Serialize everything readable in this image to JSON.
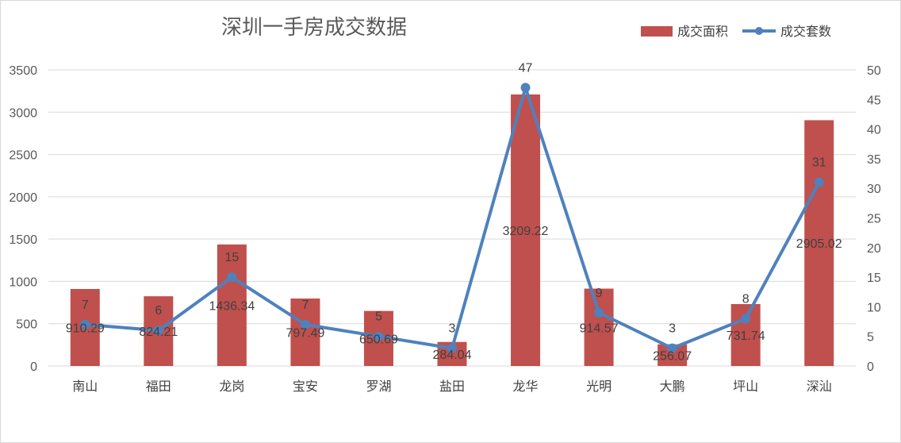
{
  "chart_data": {
    "type": "bar",
    "title": "深圳一手房成交数据",
    "categories": [
      "南山",
      "福田",
      "龙岗",
      "宝安",
      "罗湖",
      "盐田",
      "龙华",
      "光明",
      "大鹏",
      "坪山",
      "深汕"
    ],
    "series": [
      {
        "name": "成交面积",
        "type": "bar",
        "axis": "left",
        "color": "#c0504d",
        "values": [
          910.29,
          824.21,
          1436.34,
          797.49,
          650.69,
          284.04,
          3209.22,
          914.57,
          256.07,
          731.74,
          2905.02
        ],
        "labels": [
          "910.29",
          "824.21",
          "1436.34",
          "797.49",
          "650.69",
          "284.04",
          "3209.22",
          "914.57",
          "256.07",
          "731.74",
          "2905.02"
        ]
      },
      {
        "name": "成交套数",
        "type": "line",
        "axis": "right",
        "color": "#4f81bd",
        "values": [
          7,
          6,
          15,
          7,
          5,
          3,
          47,
          9,
          3,
          8,
          31
        ],
        "labels": [
          "7",
          "6",
          "15",
          "7",
          "5",
          "3",
          "47",
          "9",
          "3",
          "8",
          "31"
        ]
      }
    ],
    "y_left": {
      "ylim": [
        0,
        3500
      ],
      "ticks": [
        "0",
        "500",
        "1000",
        "1500",
        "2000",
        "2500",
        "3000",
        "3500"
      ]
    },
    "y_right": {
      "ylim": [
        0,
        50
      ],
      "ticks": [
        "0",
        "5",
        "10",
        "15",
        "20",
        "25",
        "30",
        "35",
        "40",
        "45",
        "50"
      ]
    },
    "grid": true,
    "legend_position": "top-right"
  }
}
